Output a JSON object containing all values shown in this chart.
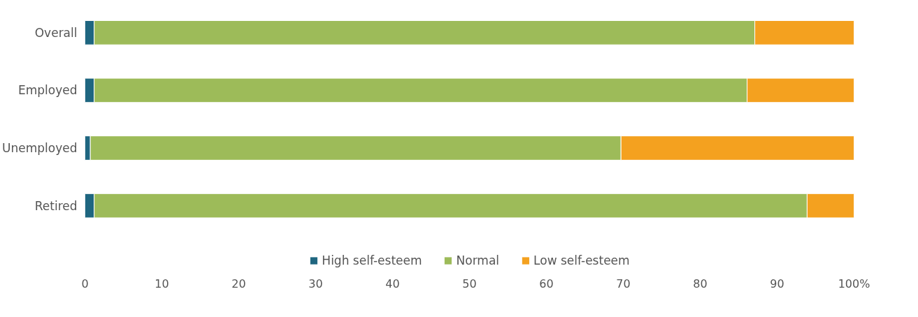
{
  "chart_data": {
    "type": "bar",
    "orientation": "horizontal",
    "stacked": true,
    "categories": [
      "Overall",
      "Employed",
      "Unemployed",
      "Retired"
    ],
    "series": [
      {
        "name": "High self-esteem",
        "color": "#1f6680",
        "values": [
          1.2,
          1.2,
          0.7,
          1.2
        ]
      },
      {
        "name": "Normal",
        "color": "#9dbb59",
        "values": [
          85.9,
          84.9,
          69.0,
          92.7
        ]
      },
      {
        "name": "Low self-esteem",
        "color": "#f4a11f",
        "values": [
          12.9,
          13.9,
          30.3,
          6.1
        ]
      }
    ],
    "xlim": [
      0,
      100
    ],
    "xticks": [
      0,
      10,
      20,
      30,
      40,
      50,
      60,
      70,
      80,
      90,
      {
        "value": 100,
        "label": "100%"
      }
    ],
    "grid": false,
    "legend": "bottom"
  }
}
